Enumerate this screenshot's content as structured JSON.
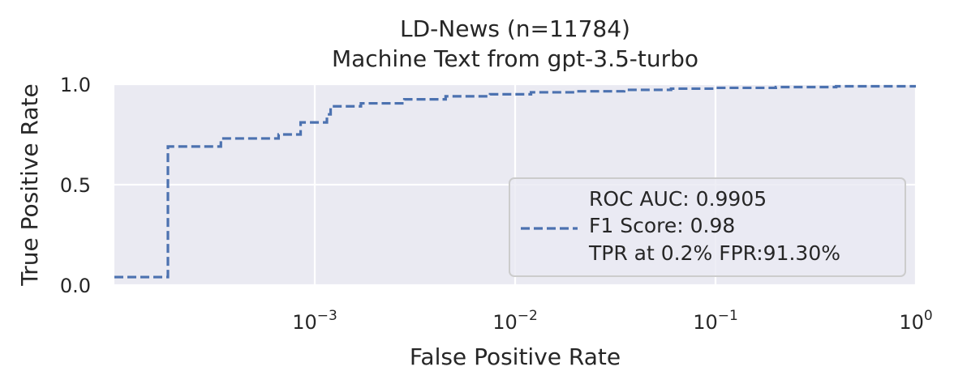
{
  "chart_data": {
    "type": "line",
    "title": "LD-News (n=11784)",
    "subtitle": "Machine Text from gpt-3.5-turbo",
    "xlabel": "False Positive Rate",
    "ylabel": "True Positive Rate",
    "xscale": "log",
    "xlim": [
      0.0001,
      1
    ],
    "ylim": [
      0,
      1
    ],
    "grid": true,
    "x_ticks": [
      {
        "value": 0.001,
        "base": "10",
        "exp": "−3"
      },
      {
        "value": 0.01,
        "base": "10",
        "exp": "−2"
      },
      {
        "value": 0.1,
        "base": "10",
        "exp": "−1"
      },
      {
        "value": 1,
        "base": "10",
        "exp": "0"
      }
    ],
    "y_ticks": [
      {
        "value": 0.0,
        "label": "0.0"
      },
      {
        "value": 0.5,
        "label": "0.5"
      },
      {
        "value": 1.0,
        "label": "1.0"
      }
    ],
    "series": [
      {
        "line_style": "dashed",
        "color": "#4c72b0",
        "x": [
          0.0001,
          0.000185,
          0.000185,
          0.00034,
          0.00034,
          0.00066,
          0.00066,
          0.00085,
          0.00085,
          0.00115,
          0.00115,
          0.0012,
          0.0012,
          0.0017,
          0.0017,
          0.0028,
          0.0028,
          0.0045,
          0.0045,
          0.0075,
          0.0075,
          0.012,
          0.012,
          0.02,
          0.02,
          0.035,
          0.035,
          0.06,
          0.06,
          0.1,
          0.1,
          0.2,
          0.2,
          0.4,
          0.4,
          1.0
        ],
        "y": [
          0.04,
          0.04,
          0.69,
          0.69,
          0.73,
          0.73,
          0.75,
          0.75,
          0.81,
          0.81,
          0.85,
          0.85,
          0.89,
          0.89,
          0.905,
          0.905,
          0.925,
          0.925,
          0.94,
          0.94,
          0.95,
          0.95,
          0.96,
          0.96,
          0.965,
          0.965,
          0.972,
          0.972,
          0.978,
          0.978,
          0.982,
          0.982,
          0.986,
          0.986,
          0.99,
          0.99
        ]
      }
    ],
    "legend": {
      "placement": "lower-right",
      "lines": [
        "ROC AUC: 0.9905",
        "F1 Score: 0.98",
        "TPR at 0.2% FPR:91.30%"
      ]
    },
    "colors": {
      "plot_background": "#eaeaf2",
      "grid": "#ffffff",
      "line": "#4c72b0"
    }
  }
}
